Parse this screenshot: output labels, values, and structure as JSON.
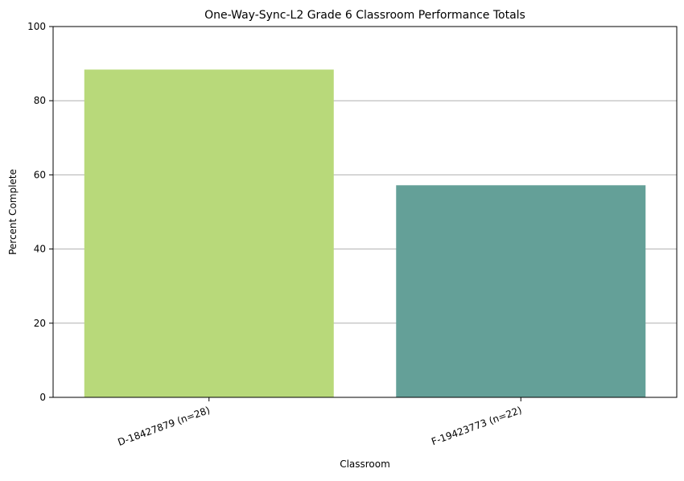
{
  "chart_data": {
    "type": "bar",
    "title": "One-Way-Sync-L2 Grade 6 Classroom Performance Totals",
    "xlabel": "Classroom",
    "ylabel": "Percent Complete",
    "categories": [
      "D-18427879 (n=28)",
      "F-19423773 (n=22)"
    ],
    "values": [
      88.4,
      57.2
    ],
    "bar_colors": [
      "#b8d97a",
      "#64a098"
    ],
    "ylim": [
      0,
      100
    ],
    "yticks": [
      0,
      20,
      40,
      60,
      80,
      100
    ],
    "grid": "horizontal",
    "grid_color": "#b0b0b0"
  }
}
